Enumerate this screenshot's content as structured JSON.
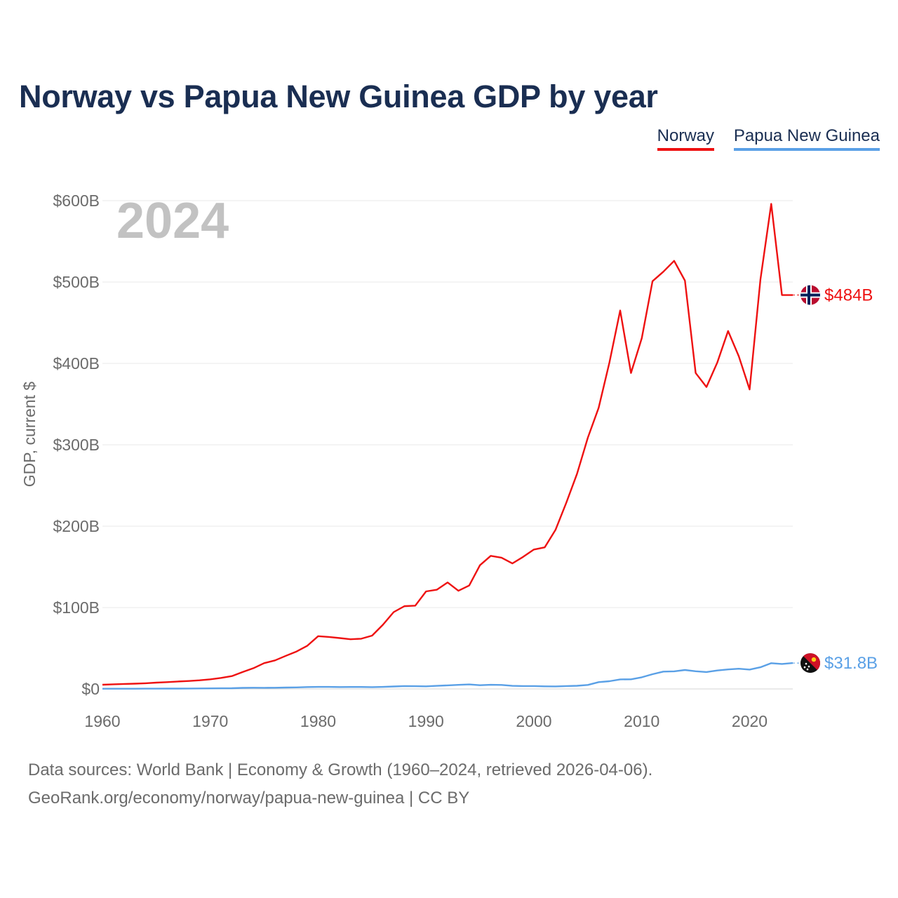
{
  "title": "Norway vs Papua New Guinea GDP by year",
  "legend": [
    {
      "name": "Norway",
      "color": "#ee1111"
    },
    {
      "name": "Papua New Guinea",
      "color": "#5aa0e6"
    }
  ],
  "chart_data": {
    "type": "line",
    "title": "Norway vs Papua New Guinea GDP by year",
    "year_label": "2024",
    "ylabel": "GDP, current $",
    "xlabel": "",
    "xlim": [
      1960,
      2024
    ],
    "ylim": [
      0,
      600
    ],
    "y_unit": "billion USD",
    "x_ticks": [
      "1960",
      "1970",
      "1980",
      "1990",
      "2000",
      "2010",
      "2020"
    ],
    "x_tick_values": [
      1960,
      1970,
      1980,
      1990,
      2000,
      2010,
      2020
    ],
    "y_ticks": [
      "$0",
      "$100B",
      "$200B",
      "$300B",
      "$400B",
      "$500B",
      "$600B"
    ],
    "y_tick_values": [
      0,
      100,
      200,
      300,
      400,
      500,
      600
    ],
    "grid": true,
    "x": [
      1960,
      1961,
      1962,
      1963,
      1964,
      1965,
      1966,
      1967,
      1968,
      1969,
      1970,
      1971,
      1972,
      1973,
      1974,
      1975,
      1976,
      1977,
      1978,
      1979,
      1980,
      1981,
      1982,
      1983,
      1984,
      1985,
      1986,
      1987,
      1988,
      1989,
      1990,
      1991,
      1992,
      1993,
      1994,
      1995,
      1996,
      1997,
      1998,
      1999,
      2000,
      2001,
      2002,
      2003,
      2004,
      2005,
      2006,
      2007,
      2008,
      2009,
      2010,
      2011,
      2012,
      2013,
      2014,
      2015,
      2016,
      2017,
      2018,
      2019,
      2020,
      2021,
      2022,
      2023,
      2024
    ],
    "series": [
      {
        "name": "Norway",
        "color": "#ee1111",
        "end_label": "$484B",
        "values": [
          5.2,
          5.7,
          6.1,
          6.5,
          7.0,
          7.8,
          8.4,
          9.1,
          9.7,
          10.6,
          11.8,
          13.5,
          15.8,
          20.8,
          25.5,
          31.7,
          35.1,
          40.7,
          46.0,
          53.1,
          64.8,
          63.9,
          62.5,
          61.0,
          61.7,
          65.5,
          78.9,
          94.4,
          101.7,
          102.3,
          119.8,
          121.9,
          130.9,
          120.6,
          127.1,
          152.0,
          163.5,
          161.3,
          154.2,
          162.2,
          171.3,
          174.0,
          195.4,
          228.6,
          264.4,
          308.7,
          345.4,
          400.9,
          465.0,
          388.2,
          431.0,
          501.0,
          512.7,
          526.0,
          501.7,
          388.2,
          371.0,
          401.0,
          439.8,
          408.7,
          368.0,
          503.0,
          596.0,
          484.0,
          484.0
        ]
      },
      {
        "name": "Papua New Guinea",
        "color": "#5aa0e6",
        "end_label": "$31.8B",
        "values": [
          0.23,
          0.25,
          0.27,
          0.3,
          0.33,
          0.37,
          0.41,
          0.46,
          0.52,
          0.6,
          0.65,
          0.75,
          0.9,
          1.3,
          1.5,
          1.4,
          1.5,
          1.7,
          1.9,
          2.3,
          2.5,
          2.5,
          2.3,
          2.4,
          2.4,
          2.2,
          2.5,
          3.0,
          3.5,
          3.4,
          3.2,
          3.8,
          4.4,
          5.0,
          5.5,
          4.6,
          5.1,
          4.9,
          3.8,
          3.5,
          3.5,
          3.2,
          3.1,
          3.5,
          3.9,
          4.9,
          8.4,
          9.5,
          11.7,
          11.8,
          14.3,
          18.1,
          21.3,
          21.6,
          23.3,
          21.7,
          20.8,
          22.7,
          24.0,
          24.8,
          23.8,
          26.6,
          31.6,
          30.7,
          31.8
        ]
      }
    ]
  },
  "footer": {
    "source": "Data sources: World Bank | Economy & Growth (1960–2024, retrieved 2026-04-06).",
    "url": "GeoRank.org/economy/norway/papua-new-guinea | CC BY"
  }
}
